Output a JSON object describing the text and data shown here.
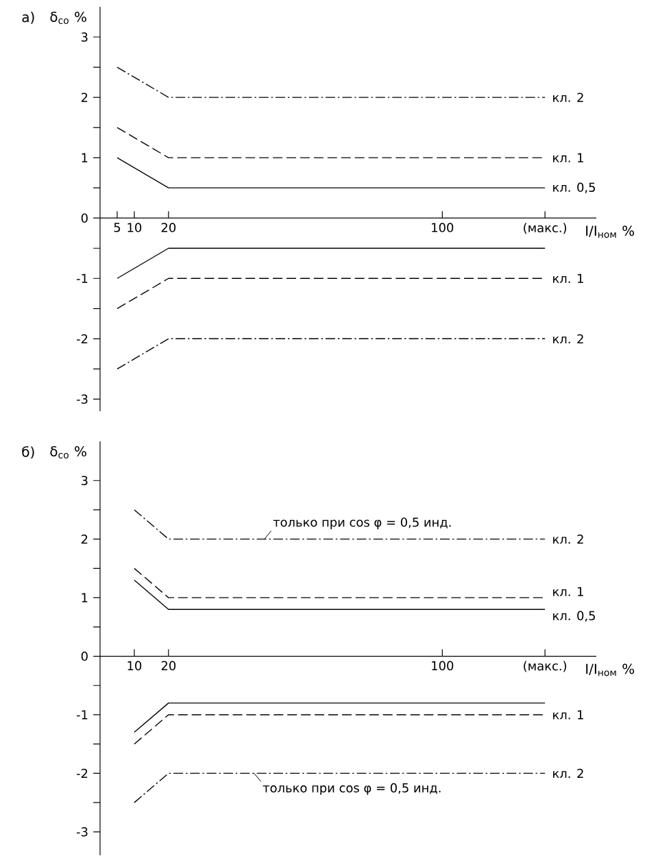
{
  "chart_data": [
    {
      "type": "line",
      "title": "а)",
      "ylabel": "δ$_{со}$ %",
      "xlabel": "I/I$_{ном}$ %",
      "xlim": [
        0,
        145
      ],
      "xticks": [
        5,
        10,
        20,
        100,
        {
          "value": 130,
          "label": "(макс.)"
        }
      ],
      "ylim": [
        -3.2,
        3.5
      ],
      "yticks": [
        -3,
        {
          "value": -2.5,
          "label": null
        },
        -2,
        {
          "value": -1.5,
          "label": null
        },
        -1,
        {
          "value": -0.5,
          "label": null
        },
        0,
        {
          "value": 0.5,
          "label": null
        },
        1,
        {
          "value": 1.5,
          "label": null
        },
        2,
        {
          "value": 2.5,
          "label": null
        },
        3
      ],
      "series": [
        {
          "name": "кл. 2",
          "color": "#000000",
          "line_style": "dashdot",
          "x": [
            5,
            20,
            130
          ],
          "values": [
            2.5,
            2,
            2
          ]
        },
        {
          "name": "кл. 1",
          "color": "#000000",
          "line_style": "dashed",
          "x": [
            5,
            20,
            130
          ],
          "values": [
            1.5,
            1,
            1
          ]
        },
        {
          "name": "кл. 0,5",
          "color": "#000000",
          "line_style": "solid",
          "x": [
            5,
            20,
            130
          ],
          "values": [
            1,
            0.5,
            0.5
          ]
        },
        {
          "color": "#000000",
          "line_style": "solid",
          "x": [
            5,
            20,
            130
          ],
          "values": [
            -1,
            -0.5,
            -0.5
          ]
        },
        {
          "name": "кл. 1",
          "color": "#000000",
          "line_style": "dashed",
          "x": [
            5,
            20,
            130
          ],
          "values": [
            -1.5,
            -1,
            -1
          ]
        },
        {
          "name": "кл. 2",
          "color": "#000000",
          "line_style": "dashdot",
          "x": [
            5,
            20,
            130
          ],
          "values": [
            -2.5,
            -2,
            -2
          ]
        }
      ]
    },
    {
      "type": "line",
      "title": "б)",
      "ylabel": "δ$_{со}$ %",
      "xlabel": "I/I$_{ном}$ %",
      "xlim": [
        0,
        145
      ],
      "xticks": [
        10,
        20,
        100,
        {
          "value": 130,
          "label": "(макс.)"
        }
      ],
      "ylim": [
        -3.4,
        3.67
      ],
      "yticks": [
        -3,
        {
          "value": -2.5,
          "label": null
        },
        -2,
        {
          "value": -1.5,
          "label": null
        },
        -1,
        {
          "value": -0.5,
          "label": null
        },
        0,
        {
          "value": 0.5,
          "label": null
        },
        1,
        {
          "value": 1.5,
          "label": null
        },
        2,
        {
          "value": 2.5,
          "label": null
        },
        3
      ],
      "annotations": [
        {
          "text": "только при cos φ = 0,5 инд.",
          "x": 48,
          "y": 2
        },
        {
          "text": "только при cos φ = 0,5 инд.",
          "x": 45,
          "y": -2
        }
      ],
      "series": [
        {
          "name": "кл. 2",
          "color": "#000000",
          "line_style": "dashdot",
          "x": [
            10,
            20,
            130
          ],
          "values": [
            2.5,
            2,
            2
          ]
        },
        {
          "name": "кл. 1",
          "color": "#000000",
          "line_style": "dashed",
          "x": [
            10,
            20,
            130
          ],
          "values": [
            1.5,
            1,
            1
          ]
        },
        {
          "name": "кл. 0,5",
          "color": "#000000",
          "line_style": "solid",
          "x": [
            10,
            20,
            130
          ],
          "values": [
            1.3,
            0.8,
            0.8
          ]
        },
        {
          "color": "#000000",
          "line_style": "solid",
          "x": [
            10,
            20,
            130
          ],
          "values": [
            -1.3,
            -0.8,
            -0.8
          ]
        },
        {
          "name": "кл. 1",
          "color": "#000000",
          "line_style": "dashed",
          "x": [
            10,
            20,
            130
          ],
          "values": [
            -1.5,
            -1,
            -1
          ]
        },
        {
          "name": "кл. 2",
          "color": "#000000",
          "line_style": "dashdot",
          "x": [
            10,
            20,
            130
          ],
          "values": [
            -2.5,
            -2,
            -2
          ]
        }
      ]
    }
  ]
}
